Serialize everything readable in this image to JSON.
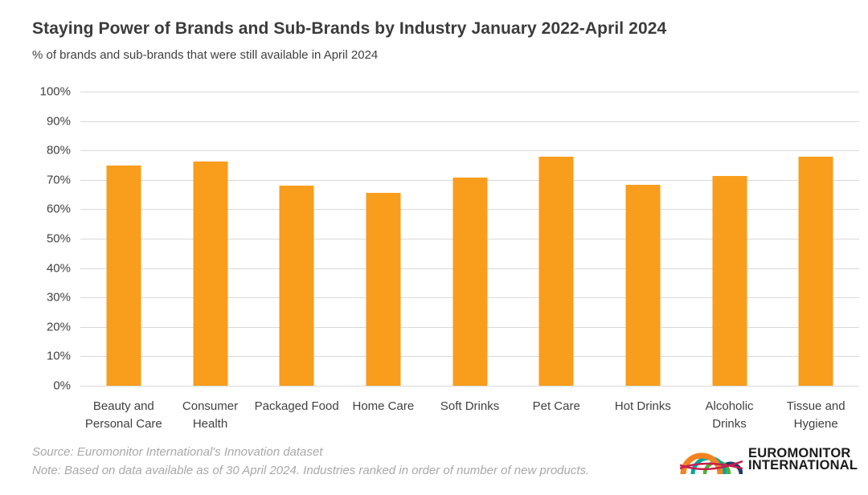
{
  "header": {
    "title": "Staying Power of Brands and Sub-Brands by Industry January 2022-April 2024",
    "subtitle": "% of brands and sub-brands that were still available in April 2024"
  },
  "chart_data": {
    "type": "bar",
    "title": "Staying Power of Brands and Sub-Brands by Industry January 2022-April 2024",
    "subtitle": "% of brands and sub-brands that were still available in April 2024",
    "categories": [
      "Beauty and Personal Care",
      "Consumer Health",
      "Packaged Food",
      "Home Care",
      "Soft Drinks",
      "Pet Care",
      "Hot Drinks",
      "Alcoholic Drinks",
      "Tissue and Hygiene"
    ],
    "values": [
      74.8,
      76.3,
      68.1,
      65.7,
      70.7,
      78.0,
      68.3,
      71.2,
      78.0
    ],
    "unit": "%",
    "xlabel": "",
    "ylabel": "",
    "ylim": [
      0,
      100
    ],
    "ytick_step": 10,
    "ytick_suffix": "%",
    "grid": "horizontal",
    "grid_color": "#d9d9d9",
    "bar_color": "#f99d1c",
    "axis_text_color": "#404040",
    "legend": "none"
  },
  "footer": {
    "source": "Source: Euromonitor International's Innovation dataset",
    "note": "Note: Based on data available as of 30 April 2024. Industries ranked in order of number of new products.",
    "text_color": "#a8a8a8"
  },
  "logo": {
    "line1": "EUROMONITOR",
    "line2": "INTERNATIONAL",
    "text_color": "#1a1a1a",
    "colors": {
      "orange": "#f58220",
      "teal": "#00a79d",
      "green": "#56af31",
      "navy": "#223a70",
      "crimson": "#c51f4f"
    }
  }
}
